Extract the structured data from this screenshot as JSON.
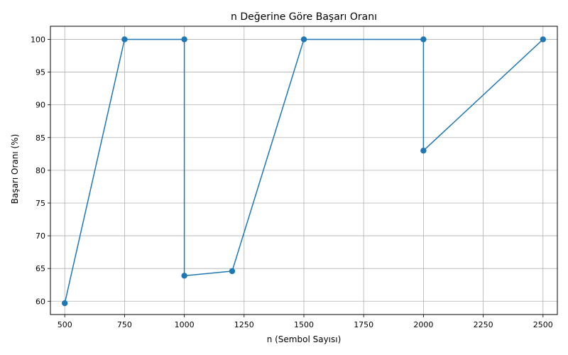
{
  "chart_data": {
    "type": "line",
    "title": "n Değerine Göre Başarı Oranı",
    "xlabel": "n (Sembol Sayısı)",
    "ylabel": "Başarı Oranı (%)",
    "x_ticks": [
      500,
      750,
      1000,
      1250,
      1500,
      1750,
      2000,
      2250,
      2500
    ],
    "y_ticks": [
      60,
      65,
      70,
      75,
      80,
      85,
      90,
      95,
      100
    ],
    "xlim": [
      440,
      2560
    ],
    "ylim": [
      57.97,
      102.0
    ],
    "grid": true,
    "series": [
      {
        "color": "#1f77b4",
        "marker": "circle",
        "x": [
          500,
          750,
          1000,
          1000,
          1200,
          1500,
          2000,
          2000,
          2500
        ],
        "y": [
          59.7,
          100,
          100,
          63.9,
          64.6,
          100,
          100,
          83.0,
          100
        ]
      }
    ]
  }
}
